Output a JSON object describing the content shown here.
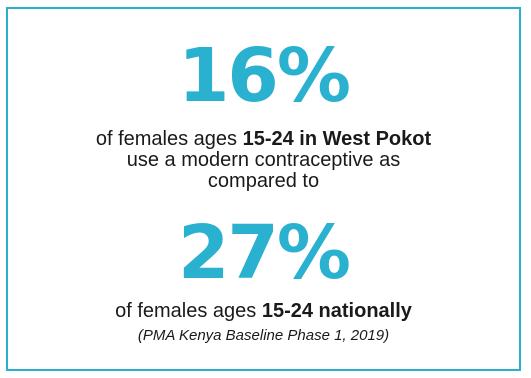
{
  "colors": {
    "accent": "#2bb1d0",
    "text": "#1a1a1a",
    "background": "#ffffff"
  },
  "stat_west_pokot": {
    "value": "16%",
    "line1_prefix": "of females ages ",
    "line1_bold": "15-24 in West Pokot",
    "line2": "use a modern contraceptive as",
    "line3": "compared to"
  },
  "stat_national": {
    "value": "27%",
    "line1_prefix": "of females ages ",
    "line1_bold": "15-24 nationally",
    "source": "(PMA Kenya Baseline Phase 1, 2019)"
  }
}
